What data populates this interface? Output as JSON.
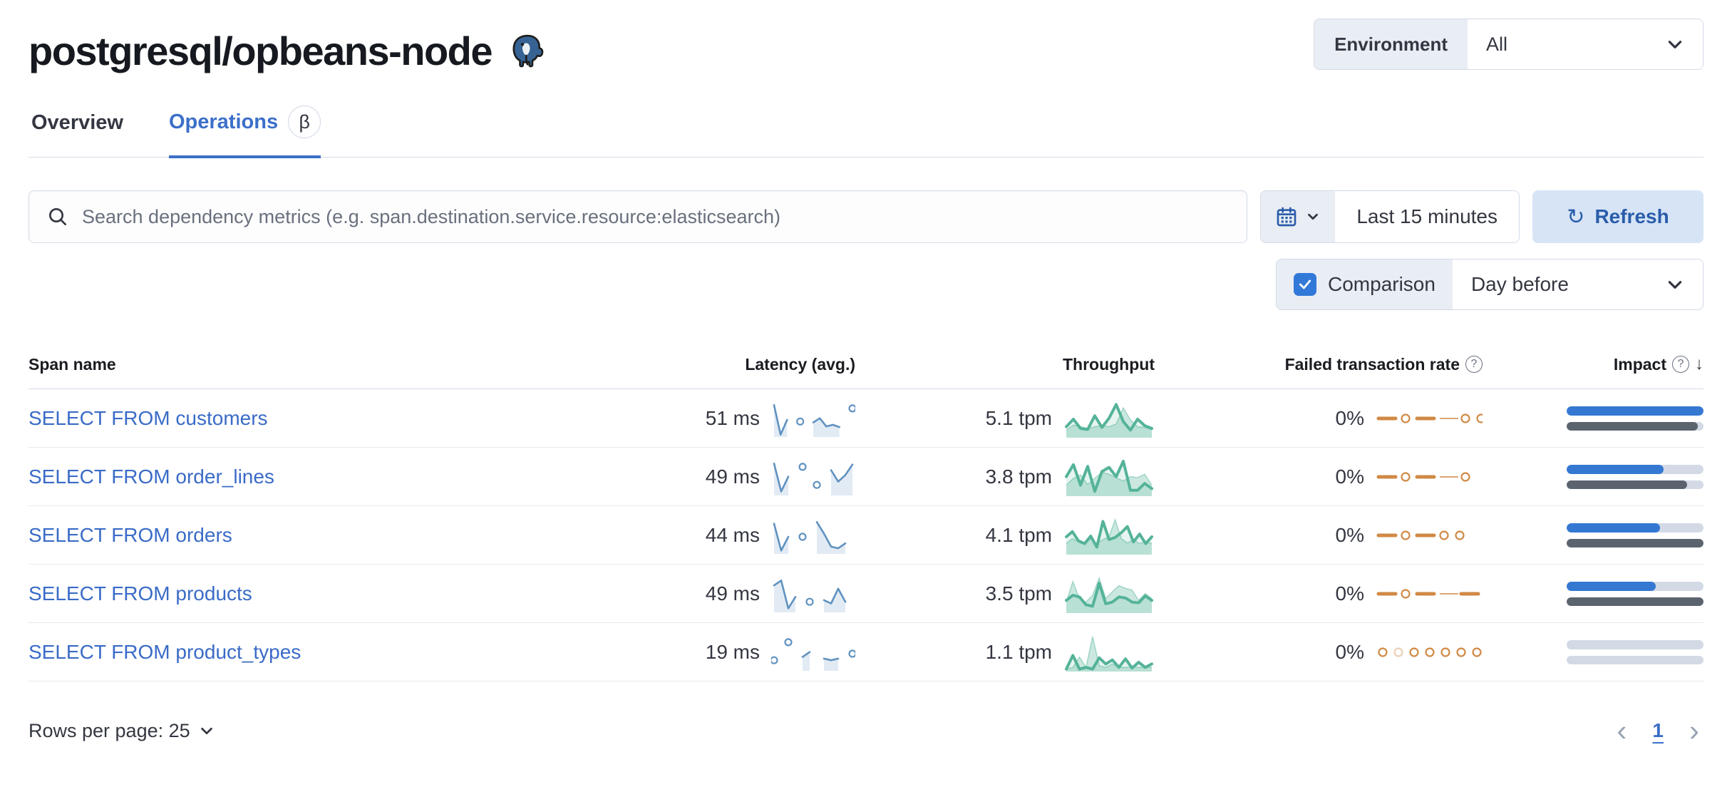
{
  "header": {
    "title": "postgresql/opbeans-node",
    "logo": "postgresql-elephant-icon",
    "environment_label": "Environment",
    "environment_value": "All"
  },
  "tabs": [
    {
      "label": "Overview",
      "active": false
    },
    {
      "label": "Operations",
      "active": true,
      "badge": "β"
    }
  ],
  "controls": {
    "search_placeholder": "Search dependency metrics (e.g. span.destination.service.resource:elasticsearch)",
    "time_range": "Last 15 minutes",
    "refresh_label": "Refresh",
    "comparison_label": "Comparison",
    "comparison_checked": true,
    "comparison_value": "Day before"
  },
  "colors": {
    "link_blue": "#3a6bc7",
    "active_tab_blue": "#3b6fc9",
    "latency_spark": "#6092c0",
    "throughput_spark": "#54b399",
    "failed_spark": "#d08945",
    "impact_current": "#3478d2",
    "impact_previous": "#5b636e",
    "impact_track": "#d3dae6",
    "checkbox_blue": "#3179d8",
    "refresh_bg": "#d6e4f6"
  },
  "table": {
    "columns": {
      "name": "Span name",
      "latency": "Latency (avg.)",
      "throughput": "Throughput",
      "failed": "Failed transaction rate",
      "impact": "Impact"
    },
    "sort_column": "Impact",
    "sort_direction": "desc",
    "rows": [
      {
        "name": "SELECT FROM customers",
        "latency": "51 ms",
        "throughput": "5.1 tpm",
        "failed_rate": "0%",
        "latency_spark": [
          0.95,
          0.05,
          0.5,
          null,
          0.45,
          null,
          0.42,
          0.55,
          0.3,
          0.35,
          0.28,
          null,
          0.85
        ],
        "throughput_spark": [
          0.3,
          0.52,
          0.25,
          0.22,
          0.62,
          0.28,
          0.55,
          0.95,
          0.45,
          0.2,
          0.52,
          0.33,
          0.25
        ],
        "throughput_prev_spark": [
          0.2,
          0.35,
          0.3,
          0.25,
          0.3,
          0.33,
          0.3,
          0.38,
          0.85,
          0.5,
          0.3,
          0.28,
          0.22
        ],
        "failed_spark": [
          "dash",
          "ring",
          "dash",
          "thin",
          "ring",
          "ring"
        ],
        "impact_current_pct": 100,
        "impact_previous_pct": 96
      },
      {
        "name": "SELECT FROM order_lines",
        "latency": "49 ms",
        "throughput": "3.8 tpm",
        "failed_rate": "0%",
        "latency_spark": [
          0.95,
          0.1,
          0.55,
          null,
          0.85,
          null,
          0.3,
          null,
          0.75,
          0.4,
          0.6,
          0.92
        ],
        "throughput_spark": [
          0.55,
          0.9,
          0.3,
          0.85,
          0.12,
          0.7,
          0.82,
          0.55,
          1.0,
          0.15,
          0.15,
          0.35,
          0.2
        ],
        "throughput_prev_spark": [
          0.3,
          0.5,
          0.6,
          0.32,
          0.5,
          0.68,
          0.62,
          0.52,
          0.42,
          0.55,
          0.52,
          0.62,
          0.3
        ],
        "failed_spark": [
          "dash",
          "ring",
          "dash",
          "thin",
          "ring"
        ],
        "impact_current_pct": 71,
        "impact_previous_pct": 88
      },
      {
        "name": "SELECT FROM orders",
        "latency": "44 ms",
        "throughput": "4.1 tpm",
        "failed_rate": "0%",
        "latency_spark": [
          0.9,
          0.08,
          0.5,
          null,
          0.5,
          null,
          0.95,
          0.6,
          0.2,
          0.15,
          0.3,
          null
        ],
        "throughput_spark": [
          0.5,
          0.65,
          0.38,
          0.3,
          0.52,
          0.2,
          0.95,
          0.42,
          0.48,
          0.62,
          0.8,
          0.35,
          0.58,
          0.3,
          0.5
        ],
        "throughput_prev_spark": [
          0.3,
          0.45,
          0.35,
          0.3,
          0.45,
          0.3,
          0.42,
          0.5,
          1.0,
          0.45,
          0.32,
          0.42,
          0.3,
          0.36,
          0.3
        ],
        "failed_spark": [
          "dash",
          "ring",
          "dash",
          "ring",
          "ring"
        ],
        "impact_current_pct": 68,
        "impact_previous_pct": 100
      },
      {
        "name": "SELECT FROM products",
        "latency": "49 ms",
        "throughput": "3.5 tpm",
        "failed_rate": "0%",
        "latency_spark": [
          0.8,
          0.95,
          0.1,
          0.45,
          null,
          0.3,
          null,
          0.35,
          0.25,
          0.7,
          0.3,
          null
        ],
        "throughput_spark": [
          0.35,
          0.5,
          0.45,
          0.22,
          0.18,
          0.85,
          0.25,
          0.3,
          0.45,
          0.42,
          0.3,
          0.28,
          0.48,
          0.35
        ],
        "throughput_prev_spark": [
          0.3,
          0.9,
          0.4,
          0.3,
          0.5,
          1.0,
          0.4,
          0.6,
          0.78,
          0.7,
          0.65,
          0.35,
          0.55,
          0.4
        ],
        "failed_spark": [
          "dash",
          "ring",
          "dash",
          "thin",
          "dash"
        ],
        "impact_current_pct": 65,
        "impact_previous_pct": 100
      },
      {
        "name": "SELECT FROM product_types",
        "latency": "19 ms",
        "throughput": "1.1 tpm",
        "failed_rate": "0%",
        "latency_spark": [
          0.3,
          null,
          0.85,
          null,
          0.4,
          0.55,
          null,
          0.35,
          0.3,
          0.35,
          null,
          0.5
        ],
        "throughput_spark": [
          0.05,
          0.45,
          0.05,
          0.1,
          0.05,
          0.38,
          0.2,
          0.32,
          0.1,
          0.35,
          0.08,
          0.25,
          0.1,
          0.2
        ],
        "throughput_prev_spark": [
          0.05,
          0.1,
          0.4,
          0.1,
          1.0,
          0.15,
          0.1,
          0.2,
          0.1,
          0.1,
          0.12,
          0.1,
          0.1,
          0.1
        ],
        "failed_spark": [
          "ring",
          "ring-faded",
          "ring",
          "ring",
          "ring",
          "ring",
          "ring"
        ],
        "impact_current_pct": 0,
        "impact_previous_pct": 0
      }
    ]
  },
  "pagination": {
    "rows_per_page_label": "Rows per page: 25",
    "current_page": "1",
    "prev_icon": "chevron-left-icon",
    "next_icon": "chevron-right-icon"
  }
}
